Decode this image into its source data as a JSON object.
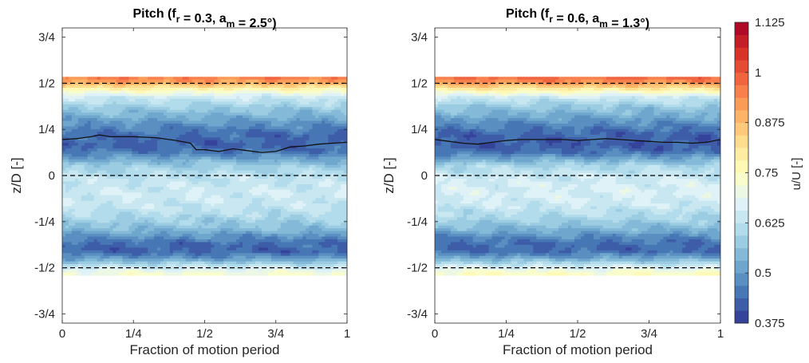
{
  "chart_data": [
    {
      "type": "heatmap",
      "title": {
        "prefix": "Pitch (f",
        "sub1": "r",
        "middle": " = 0.3, a",
        "sub2": "m",
        "suffix": " = 2.5°)"
      },
      "xlabel": "Fraction of motion period",
      "ylabel": "z/D [-]",
      "xlim": [
        0,
        1
      ],
      "ylim": [
        -0.8,
        0.8
      ],
      "xticks": [
        {
          "value": 0,
          "label": "0"
        },
        {
          "value": 0.25,
          "label": "1/4"
        },
        {
          "value": 0.5,
          "label": "1/2"
        },
        {
          "value": 0.75,
          "label": "3/4"
        },
        {
          "value": 1,
          "label": "1"
        }
      ],
      "yticks": [
        {
          "value": 0.75,
          "label": "3/4"
        },
        {
          "value": 0.5,
          "label": "1/2"
        },
        {
          "value": 0.25,
          "label": "1/4"
        },
        {
          "value": 0,
          "label": "0"
        },
        {
          "value": -0.25,
          "label": "-1/4"
        },
        {
          "value": -0.5,
          "label": "-1/2"
        },
        {
          "value": -0.75,
          "label": "-3/4"
        }
      ],
      "dashed_lines_z": [
        0.5,
        0,
        -0.5
      ],
      "field_extent_z": [
        -0.54,
        0.535
      ],
      "profile": [
        {
          "z": 0.535,
          "u": 0.96
        },
        {
          "z": 0.5,
          "u": 0.9
        },
        {
          "z": 0.46,
          "u": 0.74
        },
        {
          "z": 0.42,
          "u": 0.64
        },
        {
          "z": 0.37,
          "u": 0.58
        },
        {
          "z": 0.32,
          "u": 0.53
        },
        {
          "z": 0.27,
          "u": 0.48
        },
        {
          "z": 0.22,
          "u": 0.44
        },
        {
          "z": 0.17,
          "u": 0.43
        },
        {
          "z": 0.13,
          "u": 0.45
        },
        {
          "z": 0.09,
          "u": 0.52
        },
        {
          "z": 0.05,
          "u": 0.58
        },
        {
          "z": 0.0,
          "u": 0.62
        },
        {
          "z": -0.05,
          "u": 0.64
        },
        {
          "z": -0.1,
          "u": 0.65
        },
        {
          "z": -0.15,
          "u": 0.64
        },
        {
          "z": -0.2,
          "u": 0.62
        },
        {
          "z": -0.25,
          "u": 0.58
        },
        {
          "z": -0.29,
          "u": 0.55
        },
        {
          "z": -0.33,
          "u": 0.49
        },
        {
          "z": -0.37,
          "u": 0.44
        },
        {
          "z": -0.41,
          "u": 0.43
        },
        {
          "z": -0.45,
          "u": 0.5
        },
        {
          "z": -0.49,
          "u": 0.63
        },
        {
          "z": -0.52,
          "u": 0.7
        },
        {
          "z": -0.54,
          "u": 0.73
        }
      ],
      "wake_center_line": {
        "x": [
          0,
          0.05,
          0.1,
          0.13,
          0.17,
          0.25,
          0.33,
          0.4,
          0.45,
          0.47,
          0.5,
          0.55,
          0.6,
          0.65,
          0.7,
          0.75,
          0.8,
          0.85,
          0.9,
          0.95,
          1.0
        ],
        "z": [
          0.195,
          0.2,
          0.21,
          0.22,
          0.21,
          0.21,
          0.205,
          0.19,
          0.175,
          0.14,
          0.14,
          0.13,
          0.145,
          0.135,
          0.125,
          0.13,
          0.155,
          0.16,
          0.17,
          0.175,
          0.18
        ]
      }
    },
    {
      "type": "heatmap",
      "title": {
        "prefix": "Pitch (f",
        "sub1": "r",
        "middle": " = 0.6, a",
        "sub2": "m",
        "suffix": " = 1.3°)"
      },
      "xlabel": "Fraction of motion period",
      "ylabel": "z/D [-]",
      "xlim": [
        0,
        1
      ],
      "ylim": [
        -0.8,
        0.8
      ],
      "xticks": [
        {
          "value": 0,
          "label": "0"
        },
        {
          "value": 0.25,
          "label": "1/4"
        },
        {
          "value": 0.5,
          "label": "1/2"
        },
        {
          "value": 0.75,
          "label": "3/4"
        },
        {
          "value": 1,
          "label": "1"
        }
      ],
      "yticks": [
        {
          "value": 0.75,
          "label": "3/4"
        },
        {
          "value": 0.5,
          "label": "1/2"
        },
        {
          "value": 0.25,
          "label": "1/4"
        },
        {
          "value": 0,
          "label": "0"
        },
        {
          "value": -0.25,
          "label": "-1/4"
        },
        {
          "value": -0.5,
          "label": "-1/2"
        },
        {
          "value": -0.75,
          "label": "-3/4"
        }
      ],
      "dashed_lines_z": [
        0.5,
        0,
        -0.5
      ],
      "field_extent_z": [
        -0.54,
        0.535
      ],
      "profile": [
        {
          "z": 0.535,
          "u": 0.98
        },
        {
          "z": 0.5,
          "u": 0.92
        },
        {
          "z": 0.46,
          "u": 0.76
        },
        {
          "z": 0.42,
          "u": 0.64
        },
        {
          "z": 0.37,
          "u": 0.57
        },
        {
          "z": 0.32,
          "u": 0.52
        },
        {
          "z": 0.27,
          "u": 0.47
        },
        {
          "z": 0.22,
          "u": 0.43
        },
        {
          "z": 0.17,
          "u": 0.42
        },
        {
          "z": 0.13,
          "u": 0.44
        },
        {
          "z": 0.09,
          "u": 0.52
        },
        {
          "z": 0.05,
          "u": 0.6
        },
        {
          "z": 0.0,
          "u": 0.64
        },
        {
          "z": -0.05,
          "u": 0.66
        },
        {
          "z": -0.1,
          "u": 0.66
        },
        {
          "z": -0.15,
          "u": 0.65
        },
        {
          "z": -0.2,
          "u": 0.62
        },
        {
          "z": -0.25,
          "u": 0.58
        },
        {
          "z": -0.29,
          "u": 0.54
        },
        {
          "z": -0.33,
          "u": 0.48
        },
        {
          "z": -0.37,
          "u": 0.44
        },
        {
          "z": -0.41,
          "u": 0.44
        },
        {
          "z": -0.45,
          "u": 0.52
        },
        {
          "z": -0.49,
          "u": 0.65
        },
        {
          "z": -0.52,
          "u": 0.72
        },
        {
          "z": -0.54,
          "u": 0.76
        }
      ],
      "wake_center_line": {
        "x": [
          0,
          0.05,
          0.1,
          0.15,
          0.2,
          0.25,
          0.3,
          0.35,
          0.4,
          0.45,
          0.5,
          0.55,
          0.6,
          0.65,
          0.7,
          0.75,
          0.8,
          0.85,
          0.9,
          0.95,
          1.0
        ],
        "z": [
          0.195,
          0.185,
          0.175,
          0.17,
          0.18,
          0.19,
          0.195,
          0.195,
          0.195,
          0.195,
          0.19,
          0.195,
          0.2,
          0.195,
          0.19,
          0.185,
          0.18,
          0.18,
          0.175,
          0.18,
          0.195
        ]
      }
    }
  ],
  "colorbar": {
    "label": "u/U [-]",
    "range": [
      0.375,
      1.125
    ],
    "levels": 24,
    "ticks": [
      {
        "value": 1.125,
        "label": "1.125"
      },
      {
        "value": 1.0,
        "label": "1"
      },
      {
        "value": 0.875,
        "label": "0.875"
      },
      {
        "value": 0.75,
        "label": "0.75"
      },
      {
        "value": 0.625,
        "label": "0.625"
      },
      {
        "value": 0.5,
        "label": "0.5"
      },
      {
        "value": 0.375,
        "label": "0.375"
      }
    ],
    "colormap": [
      "#313695",
      "#4575b4",
      "#74add1",
      "#abd9e9",
      "#e0f3f8",
      "#ffffbf",
      "#fee090",
      "#fdae61",
      "#f46d43",
      "#d73027",
      "#a50026"
    ]
  }
}
